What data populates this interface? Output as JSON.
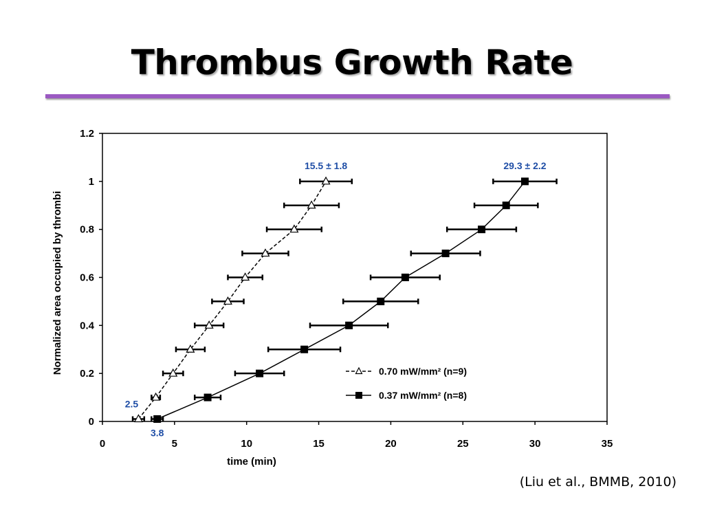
{
  "slide": {
    "title": "Thrombus Growth Rate",
    "citation": "(Liu et al., BMMB, 2010)",
    "accent_color": "#9b59c2"
  },
  "chart_data": {
    "type": "scatter",
    "title": "",
    "xlabel": "time (min)",
    "ylabel": "Normalized area occupied by thrombi",
    "xlim": [
      0,
      35
    ],
    "ylim": [
      0,
      1.2
    ],
    "xticks": [
      "0",
      "5",
      "10",
      "15",
      "20",
      "25",
      "30",
      "35"
    ],
    "yticks": [
      "0",
      "0.2",
      "0.4",
      "0.6",
      "0.8",
      "1",
      "1.2"
    ],
    "grid": false,
    "legend_position": "lower-right",
    "series": [
      {
        "name": "0.70 mW/mm² (n=9)",
        "line_style": "dashed",
        "marker": "open-triangle",
        "points": [
          {
            "x": 2.5,
            "y": 0.01,
            "err": 0.4
          },
          {
            "x": 3.7,
            "y": 0.1,
            "err": 0.3
          },
          {
            "x": 4.9,
            "y": 0.2,
            "err": 0.7
          },
          {
            "x": 6.1,
            "y": 0.3,
            "err": 1.0
          },
          {
            "x": 7.4,
            "y": 0.4,
            "err": 1.0
          },
          {
            "x": 8.7,
            "y": 0.5,
            "err": 1.1
          },
          {
            "x": 9.9,
            "y": 0.6,
            "err": 1.2
          },
          {
            "x": 11.3,
            "y": 0.7,
            "err": 1.6
          },
          {
            "x": 13.3,
            "y": 0.8,
            "err": 1.9
          },
          {
            "x": 14.5,
            "y": 0.9,
            "err": 1.9
          },
          {
            "x": 15.5,
            "y": 1.0,
            "err": 1.8
          }
        ]
      },
      {
        "name": "0.37 mW/mm² (n=8)",
        "line_style": "solid",
        "marker": "filled-square",
        "points": [
          {
            "x": 3.8,
            "y": 0.01,
            "err": 0.4
          },
          {
            "x": 7.3,
            "y": 0.1,
            "err": 0.9
          },
          {
            "x": 10.9,
            "y": 0.2,
            "err": 1.7
          },
          {
            "x": 14.0,
            "y": 0.3,
            "err": 2.5
          },
          {
            "x": 17.1,
            "y": 0.4,
            "err": 2.7
          },
          {
            "x": 19.3,
            "y": 0.5,
            "err": 2.6
          },
          {
            "x": 21.0,
            "y": 0.6,
            "err": 2.4
          },
          {
            "x": 23.8,
            "y": 0.7,
            "err": 2.4
          },
          {
            "x": 26.3,
            "y": 0.8,
            "err": 2.4
          },
          {
            "x": 28.0,
            "y": 0.9,
            "err": 2.2
          },
          {
            "x": 29.3,
            "y": 1.0,
            "err": 2.2
          }
        ]
      }
    ],
    "annotations": [
      {
        "text": "15.5 ± 1.8",
        "color": "#1f4ea6",
        "x": 15.5,
        "y": 1.0,
        "anchor": "above"
      },
      {
        "text": "29.3 ± 2.2",
        "color": "#1f4ea6",
        "x": 29.3,
        "y": 1.0,
        "anchor": "above"
      },
      {
        "text": "2.5",
        "color": "#1f4ea6",
        "x": 2.5,
        "y": 0.01,
        "anchor": "upper-left"
      },
      {
        "text": "3.8",
        "color": "#1f4ea6",
        "x": 3.8,
        "y": 0.01,
        "anchor": "below"
      }
    ]
  }
}
